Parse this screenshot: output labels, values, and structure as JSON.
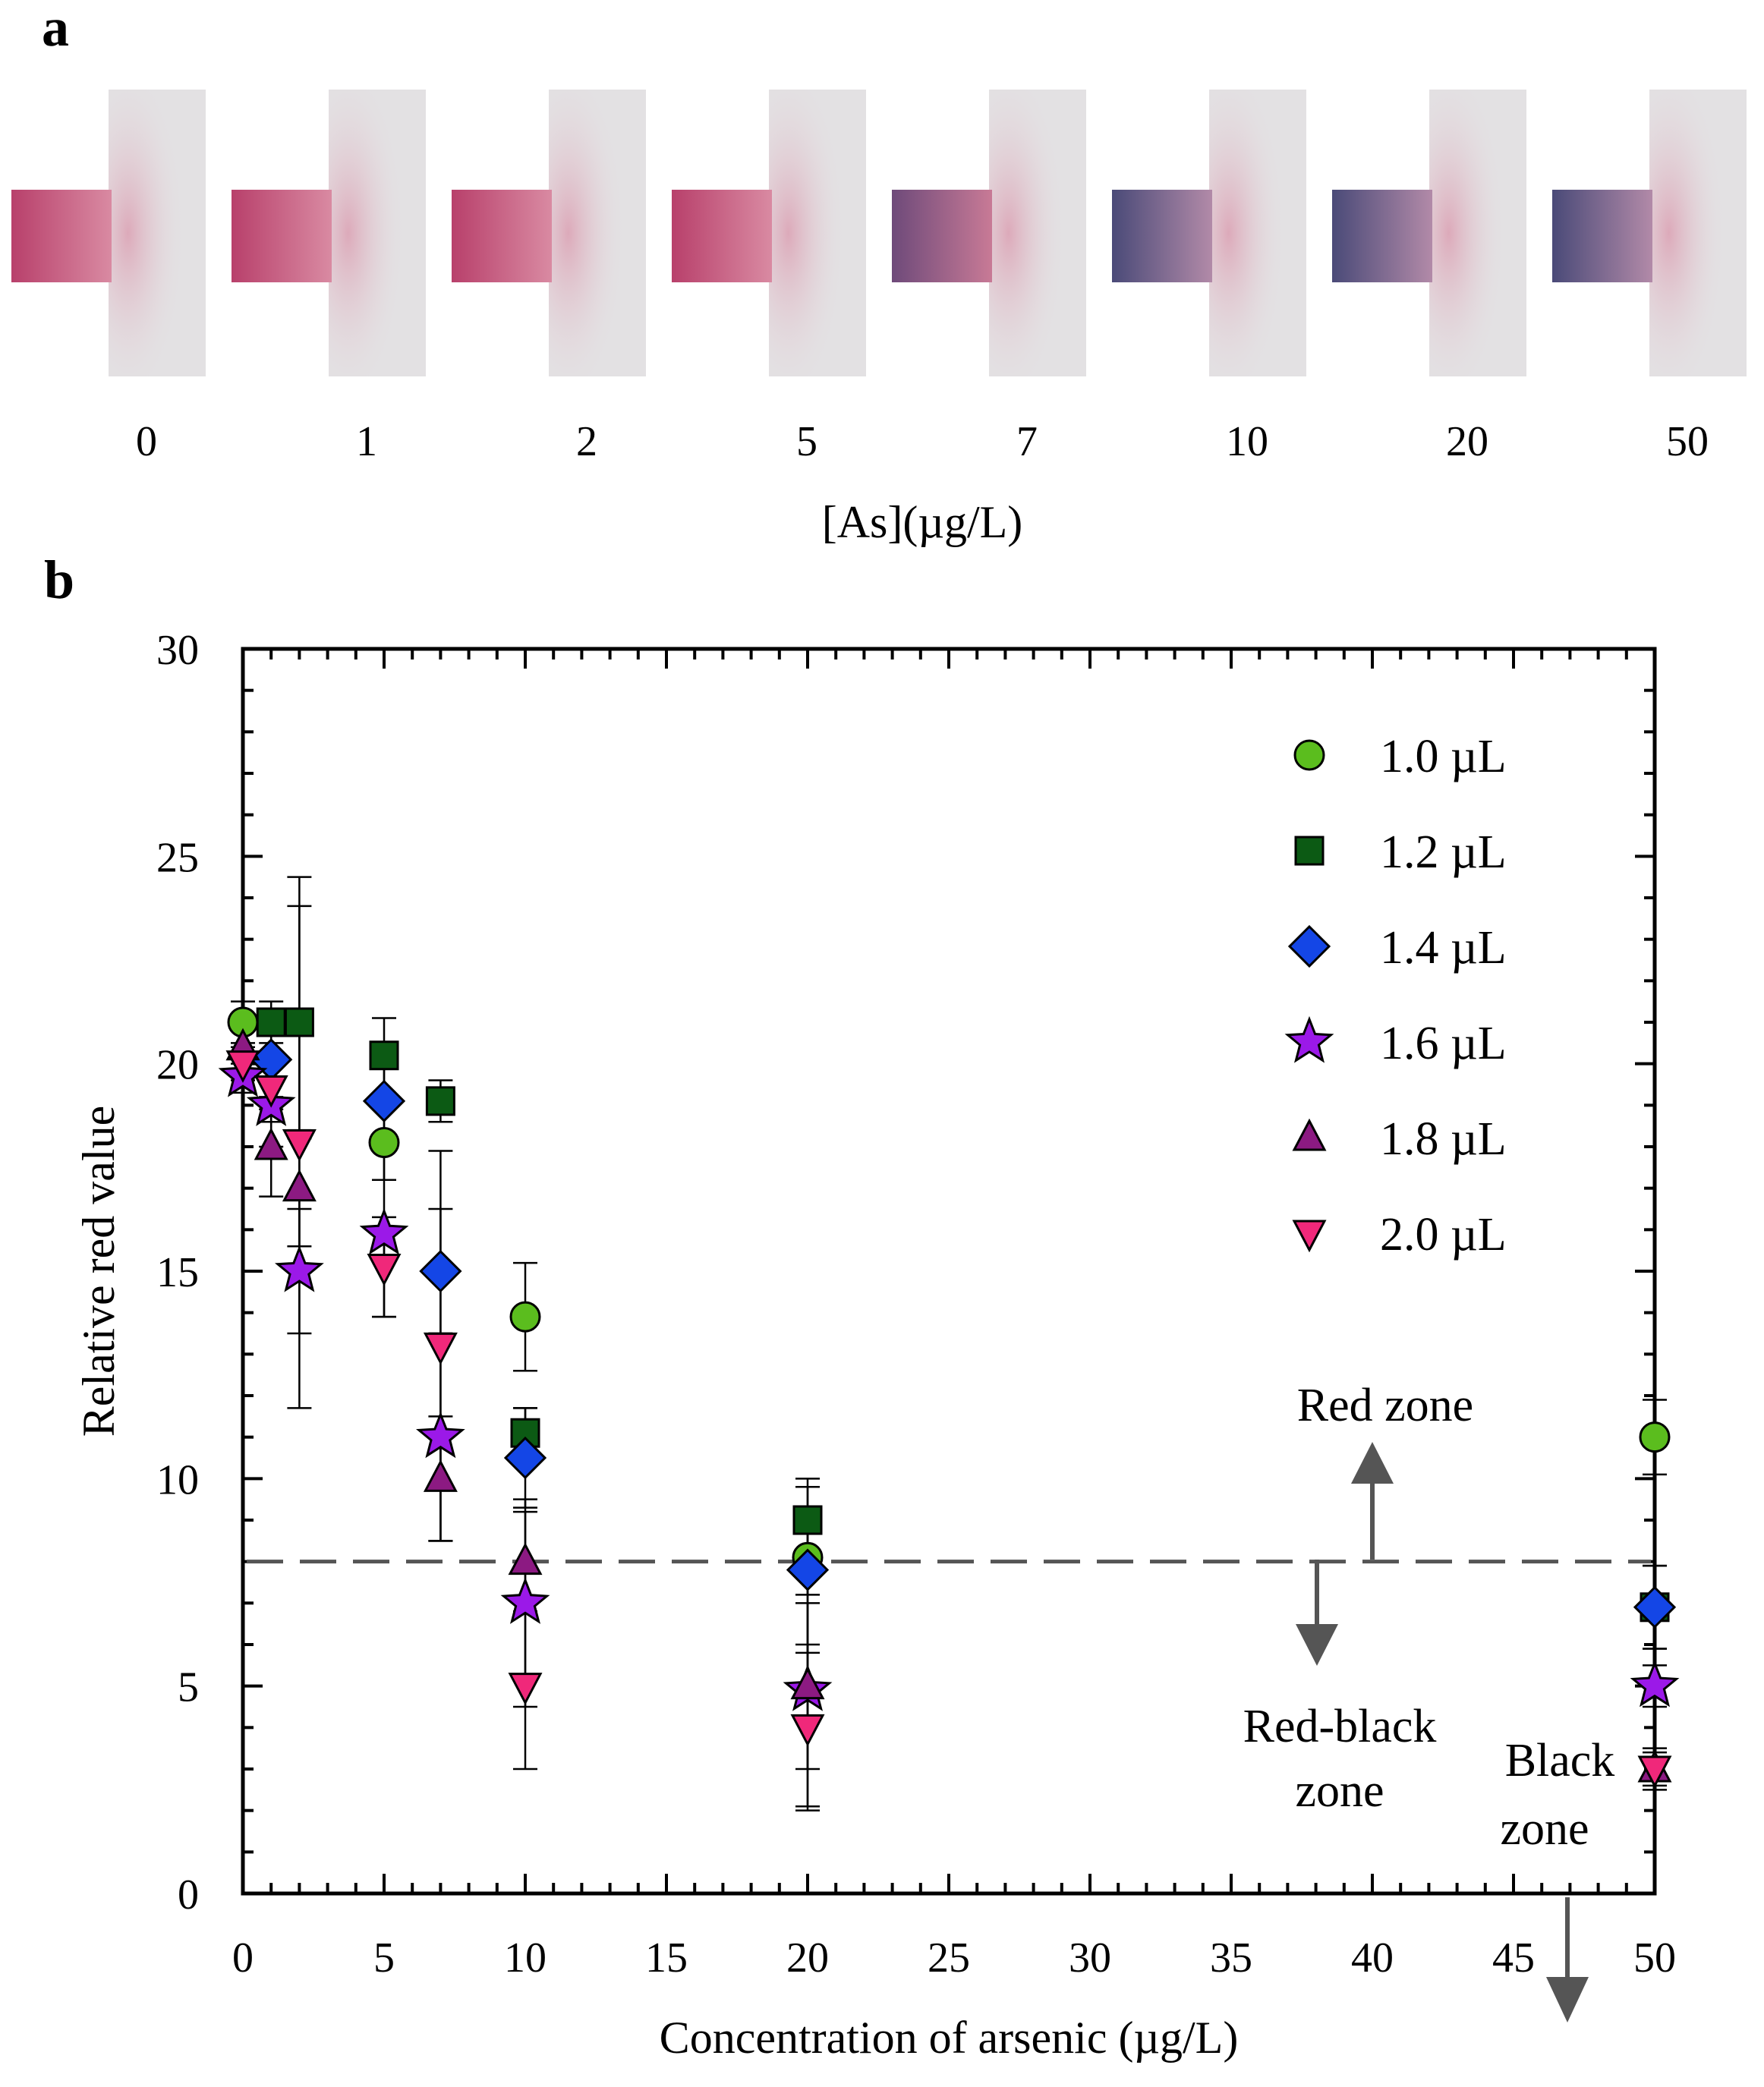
{
  "panel_a": {
    "label": "a",
    "strip_labels": [
      "0",
      "1",
      "2",
      "5",
      "7",
      "10",
      "20",
      "50"
    ],
    "axis_title": "[As](µg/L)"
  },
  "panel_b": {
    "label": "b"
  },
  "chart_data": {
    "type": "scatter",
    "xlabel": "Concentration of arsenic (µg/L)",
    "ylabel": "Relative red value",
    "xlim": [
      0,
      50
    ],
    "ylim": [
      0,
      30
    ],
    "xticks": [
      0,
      5,
      10,
      15,
      20,
      25,
      30,
      35,
      40,
      45,
      50
    ],
    "yticks": [
      0,
      5,
      10,
      15,
      20,
      25,
      30
    ],
    "threshold_line": {
      "y": 8,
      "style": "dashed"
    },
    "legend_position": "top-right",
    "series": [
      {
        "name": "1.0 µL",
        "marker": "circle",
        "color": "#5bbd1e",
        "x": [
          0,
          5,
          10,
          20,
          50
        ],
        "y": [
          21,
          18.1,
          13.9,
          8.1,
          11
        ],
        "err": [
          0.5,
          0.9,
          1.3,
          0.9,
          0.9
        ]
      },
      {
        "name": "1.2 µL",
        "marker": "square",
        "color": "#0c5a14",
        "x": [
          1,
          2,
          5,
          7,
          10,
          20,
          50
        ],
        "y": [
          21,
          21,
          20.2,
          19.1,
          11.1,
          9,
          6.9
        ],
        "err": [
          0.5,
          2.8,
          0.9,
          0.5,
          0.6,
          1.0,
          1.0
        ]
      },
      {
        "name": "1.4 µL",
        "marker": "diamond",
        "color": "#1446e6",
        "x": [
          1,
          5,
          7,
          10,
          20,
          50
        ],
        "y": [
          20.1,
          19.1,
          15,
          10.5,
          7.8,
          6.9
        ],
        "err": [
          1.2,
          1.2,
          1.5,
          1.2,
          2.0,
          1.0
        ]
      },
      {
        "name": "1.6 µL",
        "marker": "star",
        "color": "#9b19e8",
        "x": [
          0,
          1,
          2,
          5,
          7,
          10,
          20,
          50
        ],
        "y": [
          19.7,
          19,
          15,
          15.9,
          11,
          7,
          4.9,
          5
        ],
        "err": [
          0.4,
          1.0,
          1.5,
          2.0,
          2.5,
          2.5,
          2.8,
          0.5
        ]
      },
      {
        "name": "1.8 µL",
        "marker": "triangle-up",
        "color": "#8c1a82",
        "x": [
          0,
          1,
          2,
          7,
          10,
          20,
          50
        ],
        "y": [
          20.4,
          18,
          17,
          10,
          8,
          5,
          3
        ],
        "err": [
          0.4,
          1.2,
          1.4,
          1.5,
          1.2,
          2.0,
          0.5
        ]
      },
      {
        "name": "2.0 µL",
        "marker": "triangle-down",
        "color": "#f0287a",
        "x": [
          0,
          1,
          2,
          5,
          7,
          10,
          20,
          50
        ],
        "y": [
          20,
          19.4,
          18.1,
          15.1,
          13.2,
          5,
          4,
          3
        ],
        "err": [
          0.4,
          0.8,
          6.4,
          1.2,
          4.7,
          2.0,
          2.0,
          0.4
        ]
      }
    ],
    "annotations": {
      "red_zone": "Red zone",
      "red_black_zone_line1": "Red-black",
      "red_black_zone_line2": "zone",
      "black_zone_line1": "Black",
      "black_zone_line2": "zone"
    }
  }
}
